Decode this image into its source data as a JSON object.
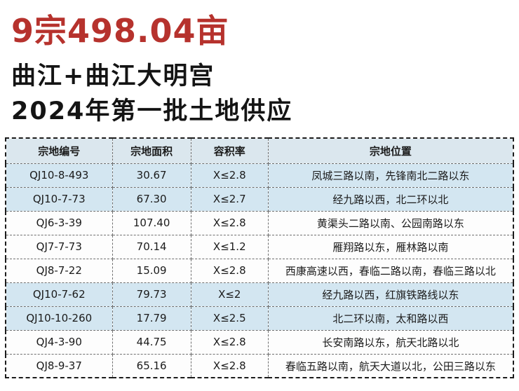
{
  "header": {
    "title": "9宗498.04亩",
    "subtitle_line1": "曲江+曲江大明宫",
    "subtitle_line2": "2024年第一批土地供应"
  },
  "colors": {
    "title_red": "#b6322d",
    "header_bg": "#dbe7ee",
    "row_highlight": "#d3e6f1"
  },
  "table": {
    "columns": [
      "宗地编号",
      "宗地面积",
      "容积率",
      "宗地位置"
    ],
    "rows": [
      {
        "id": "QJ10-8-493",
        "area": "30.67",
        "far": "X≤2.8",
        "location": "凤城三路以南，先锋南北二路以东",
        "highlight": true
      },
      {
        "id": "QJ10-7-73",
        "area": "67.30",
        "far": "X≤2.7",
        "location": "经九路以西，北二环以北",
        "highlight": true
      },
      {
        "id": "QJ6-3-39",
        "area": "107.40",
        "far": "X≤2.8",
        "location": "黄渠头二路以南、公园南路以东",
        "highlight": false
      },
      {
        "id": "QJ7-7-73",
        "area": "70.14",
        "far": "X≤1.2",
        "location": "雁翔路以东，雁林路以南",
        "highlight": false
      },
      {
        "id": "QJ8-7-22",
        "area": "15.09",
        "far": "X≤2.8",
        "location": "西康高速以西，春临二路以南，春临三路以北",
        "highlight": false
      },
      {
        "id": "QJ10-7-62",
        "area": "79.73",
        "far": "X≤2",
        "location": "经九路以西，红旗铁路线以东",
        "highlight": true
      },
      {
        "id": "QJ10-10-260",
        "area": "17.79",
        "far": "X≤2.5",
        "location": "北二环以南，太和路以西",
        "highlight": true
      },
      {
        "id": "QJ4-3-90",
        "area": "44.75",
        "far": "X≤2.8",
        "location": "长安南路以东，航天北路以北",
        "highlight": false
      },
      {
        "id": "QJ8-9-37",
        "area": "65.16",
        "far": "X≤2.8",
        "location": "春临五路以南，航天大道以北，公田三路以东",
        "highlight": false
      }
    ]
  }
}
